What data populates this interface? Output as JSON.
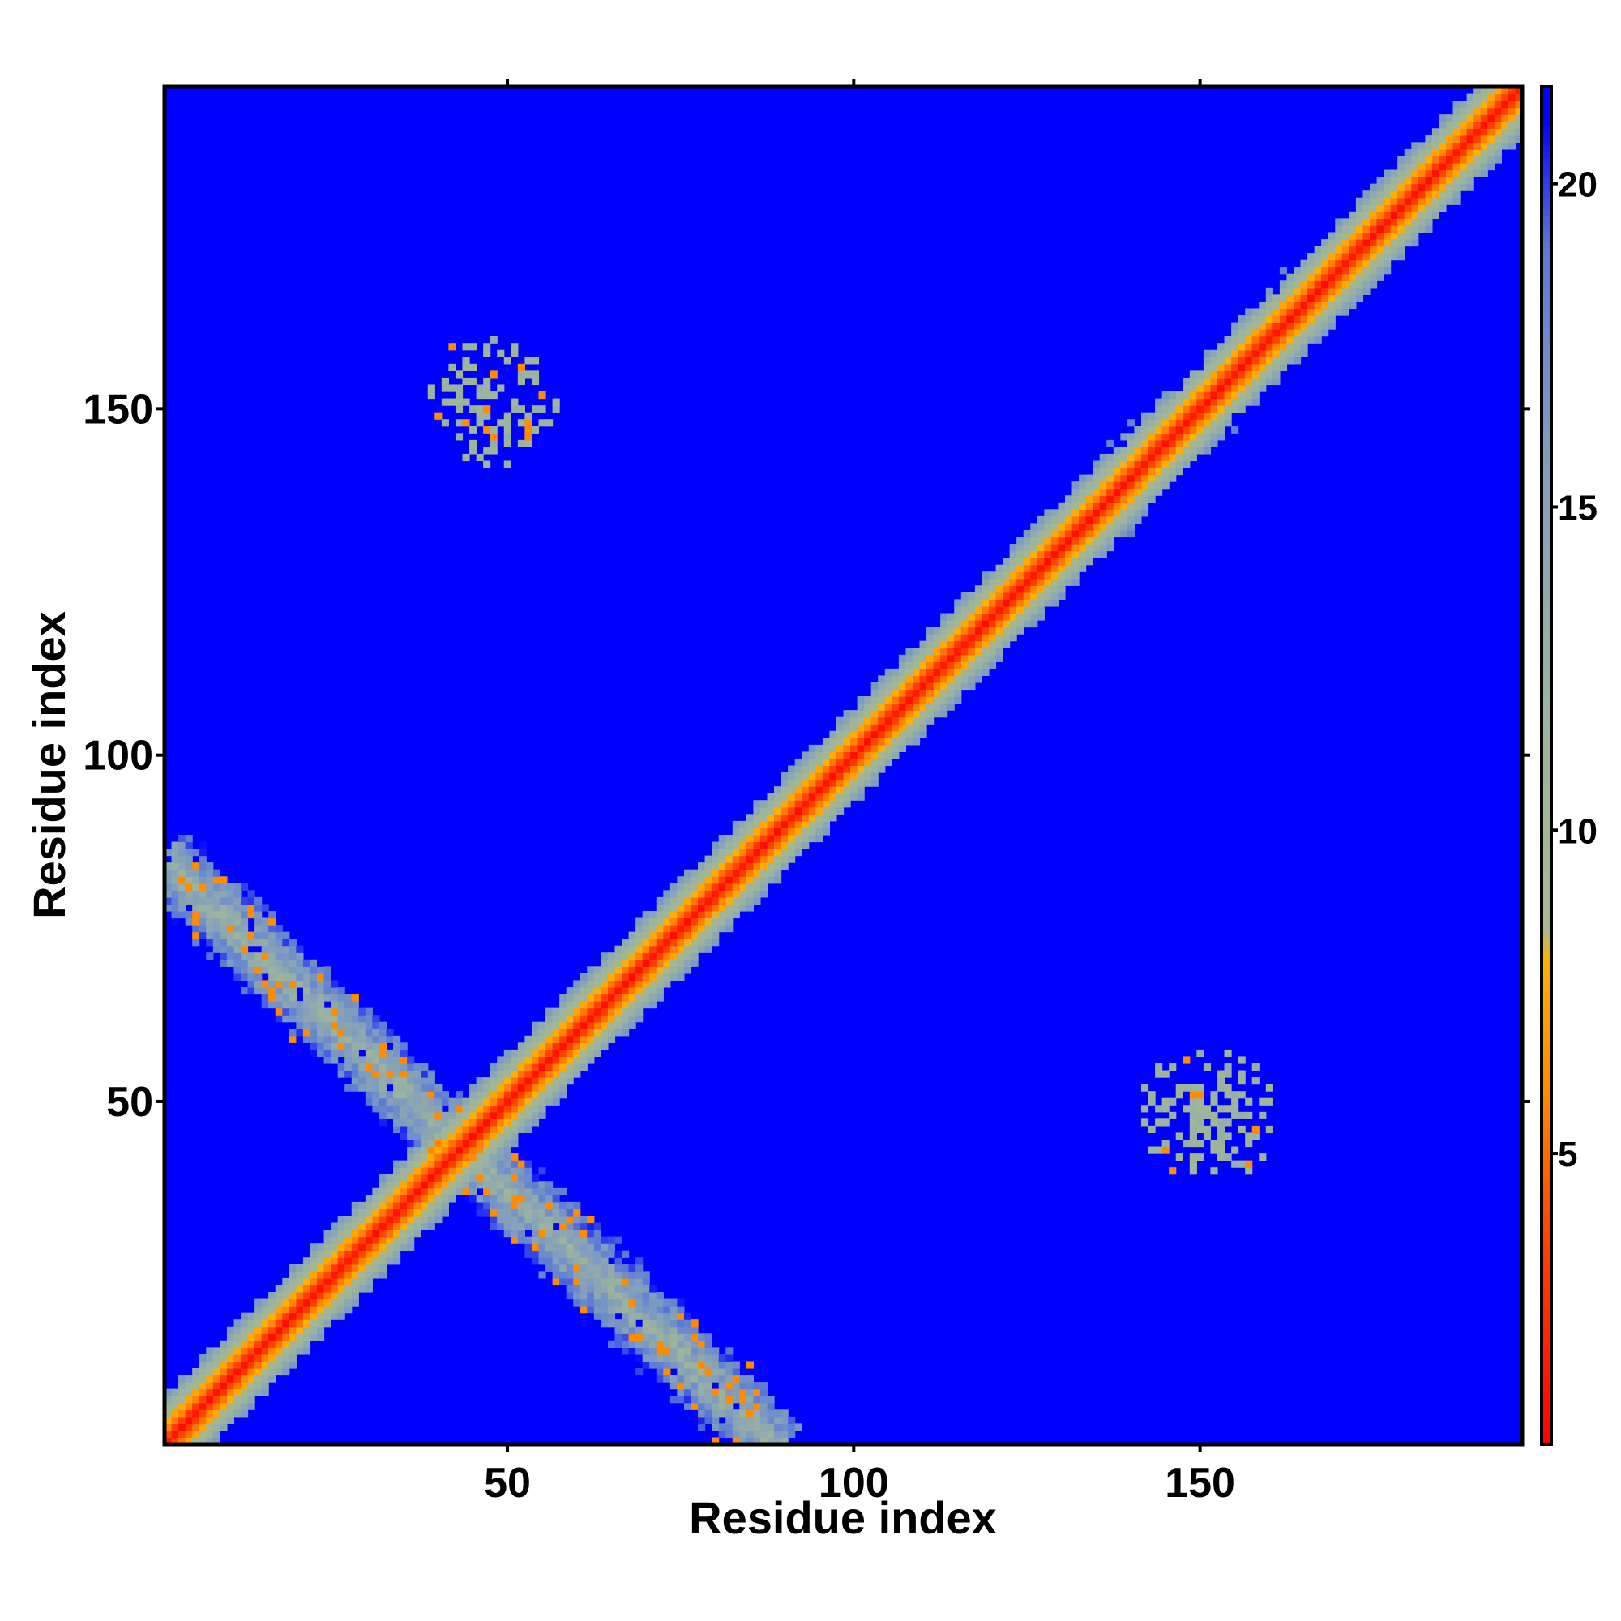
{
  "chart_data": {
    "type": "heatmap",
    "title": "",
    "xlabel": "Residue index",
    "ylabel": "Residue index",
    "n_residues": 196,
    "xlim": [
      1,
      196
    ],
    "ylim": [
      1,
      196
    ],
    "x_ticks": [
      "50",
      "100",
      "150"
    ],
    "y_ticks": [
      "50",
      "100",
      "150"
    ],
    "colorbar": {
      "range": [
        0.5,
        21.5
      ],
      "ticks": [
        "5",
        "10",
        "15",
        "20"
      ],
      "stops": [
        {
          "value": 0.5,
          "color": "#ff0000"
        },
        {
          "value": 4.0,
          "color": "#ff4a00"
        },
        {
          "value": 6.0,
          "color": "#ff8c00"
        },
        {
          "value": 8.0,
          "color": "#ffb000"
        },
        {
          "value": 8.5,
          "color": "#a7b98f"
        },
        {
          "value": 12.0,
          "color": "#9bb3a0"
        },
        {
          "value": 16.0,
          "color": "#7f9cc0"
        },
        {
          "value": 19.0,
          "color": "#5b7ad6"
        },
        {
          "value": 21.0,
          "color": "#0000ff"
        }
      ]
    },
    "background_value": 21,
    "background_color": "#0000ff",
    "features": [
      {
        "name": "main-diagonal",
        "residue_range": [
          1,
          196
        ],
        "core_value": 1,
        "band_halfwidth": 7
      },
      {
        "name": "anti-diagonal-band",
        "from": [
          1,
          84
        ],
        "to": [
          88,
          1
        ],
        "core_value": 10,
        "band_halfwidth": 5
      },
      {
        "name": "contact-cluster-upper-left",
        "center": [
          48,
          151
        ],
        "radius": 10,
        "value": 10
      },
      {
        "name": "contact-cluster-lower-right",
        "center": [
          151,
          48
        ],
        "radius": 10,
        "value": 10
      }
    ]
  }
}
